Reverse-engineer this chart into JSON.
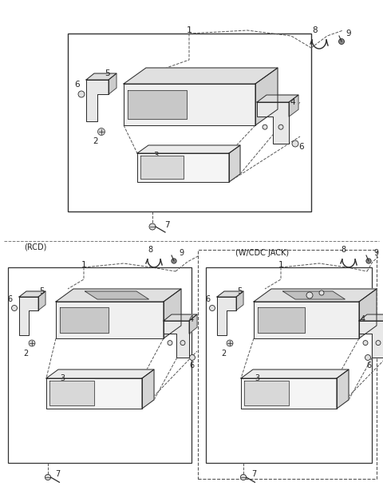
{
  "bg_color": "#ffffff",
  "lc": "#2a2a2a",
  "dc": "#555555",
  "fig_width": 4.8,
  "fig_height": 6.19,
  "dpi": 100,
  "rcd_label": "(RCD)",
  "wcdc_label": "(W/CDC JACK)"
}
